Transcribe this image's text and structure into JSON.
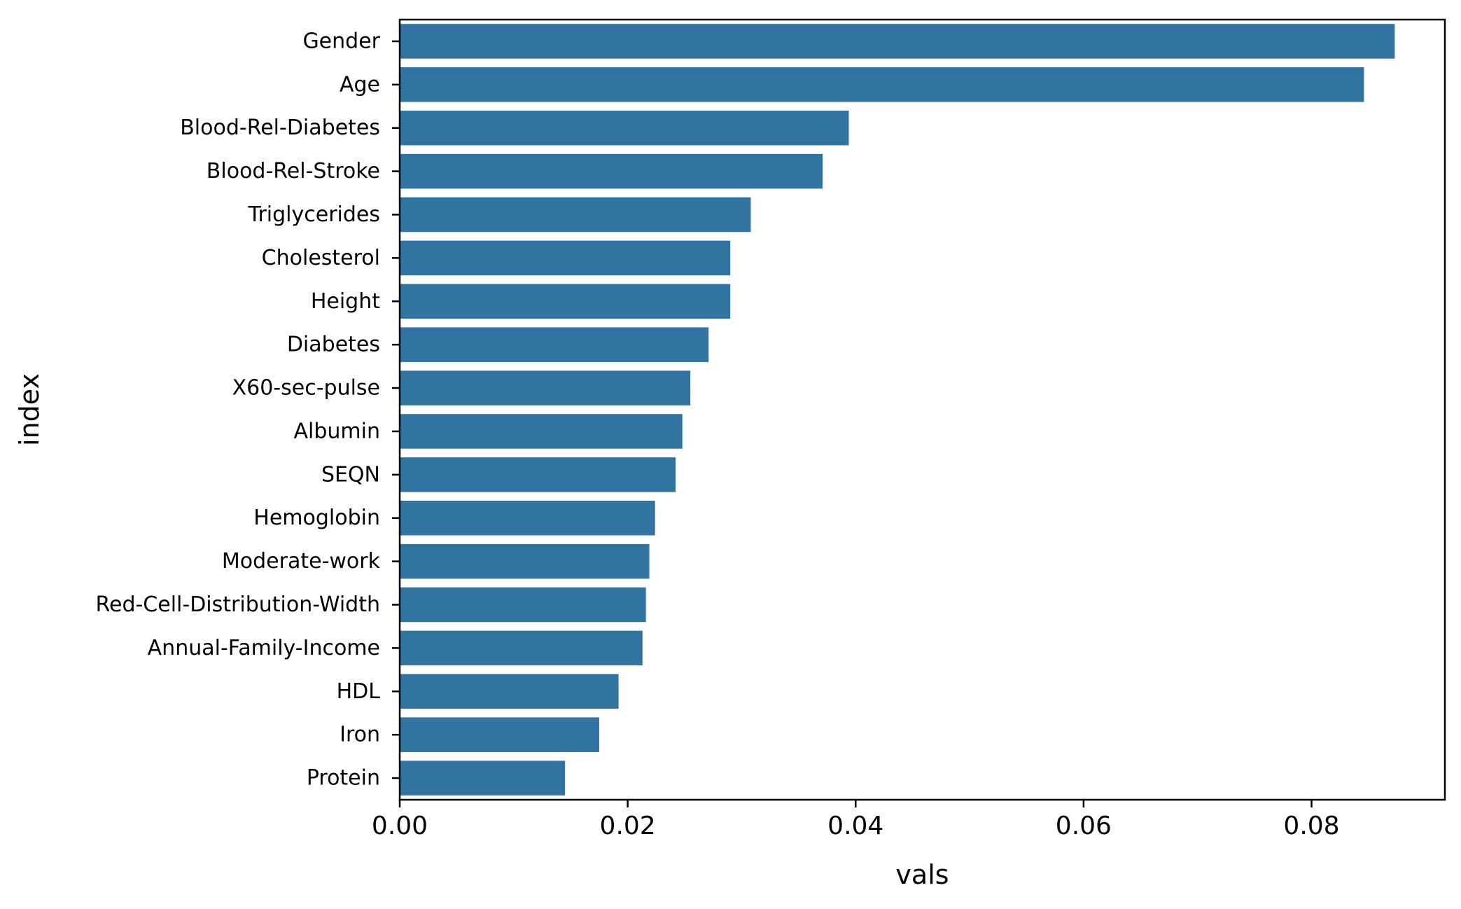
{
  "chart_data": {
    "type": "bar",
    "orientation": "horizontal",
    "categories": [
      "Gender",
      "Age",
      "Blood-Rel-Diabetes",
      "Blood-Rel-Stroke",
      "Triglycerides",
      "Cholesterol",
      "Height",
      "Diabetes",
      "X60-sec-pulse",
      "Albumin",
      "SEQN",
      "Hemoglobin",
      "Moderate-work",
      "Red-Cell-Distribution-Width",
      "Annual-Family-Income",
      "HDL",
      "Iron",
      "Protein"
    ],
    "values": [
      0.0873,
      0.0846,
      0.0394,
      0.0371,
      0.0308,
      0.029,
      0.029,
      0.0271,
      0.0255,
      0.0248,
      0.0242,
      0.0224,
      0.0219,
      0.0216,
      0.0213,
      0.0192,
      0.0175,
      0.0145
    ],
    "xlabel": "vals",
    "ylabel": "index",
    "xlim": [
      0,
      0.0917
    ],
    "xticks": [
      "0.00",
      "0.02",
      "0.04",
      "0.06",
      "0.08"
    ],
    "xtick_values": [
      0,
      0.02,
      0.04,
      0.06,
      0.08
    ],
    "grid": false,
    "bar_color": "#3274a1"
  }
}
